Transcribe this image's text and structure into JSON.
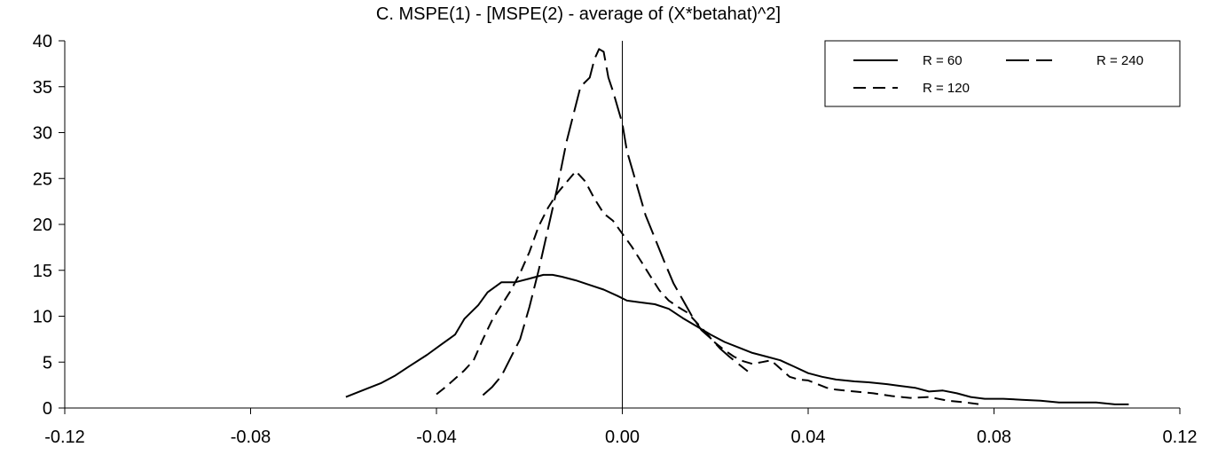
{
  "chart_data": {
    "type": "line",
    "title": "C.  MSPE(1) - [MSPE(2) - average of (X*betahat)^2]",
    "xlabel": "",
    "ylabel": "",
    "xlim": [
      -0.12,
      0.12
    ],
    "ylim": [
      0,
      40
    ],
    "x_ticks": [
      "-0.12",
      "-0.08",
      "-0.04",
      "0.00",
      "0.04",
      "0.08",
      "0.12"
    ],
    "y_ticks": [
      "0",
      "5",
      "10",
      "15",
      "20",
      "25",
      "30",
      "35",
      "40"
    ],
    "legend_position": "top-right",
    "grid": false,
    "series": [
      {
        "name": "R = 60",
        "style": "solid",
        "points": [
          [
            -0.0595,
            1.2
          ],
          [
            -0.056,
            1.9
          ],
          [
            -0.052,
            2.7
          ],
          [
            -0.049,
            3.5
          ],
          [
            -0.046,
            4.5
          ],
          [
            -0.042,
            5.8
          ],
          [
            -0.039,
            6.9
          ],
          [
            -0.036,
            8.0
          ],
          [
            -0.034,
            9.7
          ],
          [
            -0.031,
            11.2
          ],
          [
            -0.029,
            12.6
          ],
          [
            -0.026,
            13.7
          ],
          [
            -0.023,
            13.7
          ],
          [
            -0.02,
            14.1
          ],
          [
            -0.017,
            14.5
          ],
          [
            -0.015,
            14.5
          ],
          [
            -0.013,
            14.3
          ],
          [
            -0.01,
            13.9
          ],
          [
            -0.007,
            13.4
          ],
          [
            -0.004,
            12.9
          ],
          [
            -0.001,
            12.2
          ],
          [
            0.001,
            11.7
          ],
          [
            0.004,
            11.5
          ],
          [
            0.007,
            11.3
          ],
          [
            0.01,
            10.8
          ],
          [
            0.013,
            9.8
          ],
          [
            0.016,
            8.9
          ],
          [
            0.019,
            8.0
          ],
          [
            0.022,
            7.2
          ],
          [
            0.025,
            6.6
          ],
          [
            0.028,
            6.0
          ],
          [
            0.031,
            5.6
          ],
          [
            0.034,
            5.2
          ],
          [
            0.037,
            4.5
          ],
          [
            0.04,
            3.8
          ],
          [
            0.043,
            3.4
          ],
          [
            0.046,
            3.1
          ],
          [
            0.05,
            2.9
          ],
          [
            0.053,
            2.8
          ],
          [
            0.057,
            2.6
          ],
          [
            0.06,
            2.4
          ],
          [
            0.063,
            2.2
          ],
          [
            0.066,
            1.8
          ],
          [
            0.069,
            1.9
          ],
          [
            0.072,
            1.6
          ],
          [
            0.075,
            1.2
          ],
          [
            0.078,
            1.0
          ],
          [
            0.082,
            1.0
          ],
          [
            0.086,
            0.9
          ],
          [
            0.09,
            0.8
          ],
          [
            0.094,
            0.6
          ],
          [
            0.098,
            0.6
          ],
          [
            0.102,
            0.6
          ],
          [
            0.106,
            0.4
          ],
          [
            0.109,
            0.4
          ]
        ]
      },
      {
        "name": "R = 120",
        "style": "dashed",
        "points": [
          [
            -0.04,
            1.5
          ],
          [
            -0.038,
            2.3
          ],
          [
            -0.036,
            3.2
          ],
          [
            -0.034,
            4.1
          ],
          [
            -0.032,
            5.2
          ],
          [
            -0.03,
            7.5
          ],
          [
            -0.028,
            9.6
          ],
          [
            -0.026,
            11.2
          ],
          [
            -0.024,
            12.8
          ],
          [
            -0.022,
            14.7
          ],
          [
            -0.02,
            17.0
          ],
          [
            -0.018,
            19.8
          ],
          [
            -0.016,
            21.8
          ],
          [
            -0.014,
            23.4
          ],
          [
            -0.012,
            24.6
          ],
          [
            -0.01,
            25.8
          ],
          [
            -0.008,
            24.7
          ],
          [
            -0.006,
            22.8
          ],
          [
            -0.004,
            21.2
          ],
          [
            -0.002,
            20.4
          ],
          [
            0.0,
            19.0
          ],
          [
            0.002,
            17.6
          ],
          [
            0.004,
            16.0
          ],
          [
            0.006,
            14.4
          ],
          [
            0.008,
            12.8
          ],
          [
            0.01,
            11.7
          ],
          [
            0.012,
            11.0
          ],
          [
            0.014,
            10.4
          ],
          [
            0.016,
            9.3
          ],
          [
            0.018,
            8.2
          ],
          [
            0.02,
            7.1
          ],
          [
            0.022,
            6.3
          ],
          [
            0.024,
            5.6
          ],
          [
            0.026,
            5.1
          ],
          [
            0.028,
            4.8
          ],
          [
            0.03,
            5.0
          ],
          [
            0.032,
            5.2
          ],
          [
            0.034,
            4.3
          ],
          [
            0.036,
            3.4
          ],
          [
            0.038,
            3.1
          ],
          [
            0.04,
            3.0
          ],
          [
            0.042,
            2.6
          ],
          [
            0.044,
            2.2
          ],
          [
            0.046,
            2.0
          ],
          [
            0.05,
            1.8
          ],
          [
            0.054,
            1.6
          ],
          [
            0.058,
            1.3
          ],
          [
            0.062,
            1.1
          ],
          [
            0.066,
            1.2
          ],
          [
            0.07,
            0.8
          ],
          [
            0.074,
            0.6
          ],
          [
            0.077,
            0.4
          ]
        ]
      },
      {
        "name": "R = 240",
        "style": "long-dash",
        "points": [
          [
            -0.03,
            1.4
          ],
          [
            -0.028,
            2.3
          ],
          [
            -0.026,
            3.5
          ],
          [
            -0.024,
            5.5
          ],
          [
            -0.022,
            7.5
          ],
          [
            -0.02,
            11.0
          ],
          [
            -0.018,
            15.0
          ],
          [
            -0.016,
            19.5
          ],
          [
            -0.014,
            24.0
          ],
          [
            -0.012,
            29.0
          ],
          [
            -0.01,
            33.0
          ],
          [
            -0.009,
            35.0
          ],
          [
            -0.007,
            36.0
          ],
          [
            -0.006,
            38.0
          ],
          [
            -0.005,
            39.1
          ],
          [
            -0.004,
            38.8
          ],
          [
            -0.003,
            36.0
          ],
          [
            -0.002,
            34.5
          ],
          [
            0.0,
            31.0
          ],
          [
            0.001,
            28.0
          ],
          [
            0.003,
            24.5
          ],
          [
            0.005,
            21.0
          ],
          [
            0.007,
            18.5
          ],
          [
            0.009,
            16.0
          ],
          [
            0.011,
            13.6
          ],
          [
            0.013,
            11.8
          ],
          [
            0.015,
            10.0
          ],
          [
            0.017,
            8.5
          ],
          [
            0.019,
            7.6
          ],
          [
            0.021,
            6.5
          ],
          [
            0.023,
            5.6
          ],
          [
            0.025,
            4.8
          ],
          [
            0.027,
            4.0
          ]
        ]
      }
    ]
  }
}
